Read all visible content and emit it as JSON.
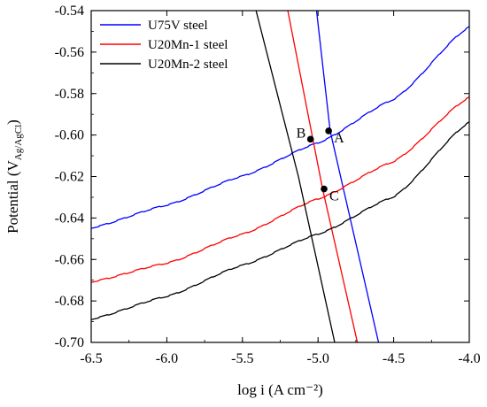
{
  "chart_data": {
    "type": "line",
    "xlabel": "log i (A cm⁻²)",
    "ylabel": "Potential (V",
    "ylabel_sub": "Ag/AgCl",
    "ylabel_close": ")",
    "xlim": [
      -6.5,
      -4.0
    ],
    "ylim": [
      -0.7,
      -0.54
    ],
    "xticks": [
      -6.5,
      -6.0,
      -5.5,
      -5.0,
      -4.5,
      -4.0
    ],
    "xtick_labels": [
      "-6.5",
      "-6.0",
      "-5.5",
      "-5.0",
      "-4.5",
      "-4.0"
    ],
    "yticks": [
      -0.7,
      -0.68,
      -0.66,
      -0.64,
      -0.62,
      -0.6,
      -0.58,
      -0.56,
      -0.54
    ],
    "ytick_labels": [
      "-0.70",
      "-0.68",
      "-0.66",
      "-0.64",
      "-0.62",
      "-0.60",
      "-0.58",
      "-0.56",
      "-0.54"
    ],
    "legend_position": "top-left",
    "series": [
      {
        "name": "U75V steel",
        "color": "#0000ff",
        "anodic": [
          [
            -6.5,
            -0.645
          ],
          [
            -6.0,
            -0.634
          ],
          [
            -5.5,
            -0.62
          ],
          [
            -5.0,
            -0.604
          ],
          [
            -4.5,
            -0.583
          ],
          [
            -4.0,
            -0.548
          ]
        ],
        "cathodic": [
          [
            -5.01,
            -0.54
          ],
          [
            -4.92,
            -0.598
          ],
          [
            -4.6,
            -0.7
          ]
        ]
      },
      {
        "name": "U20Mn-1 steel",
        "color": "#ff0000",
        "anodic": [
          [
            -6.5,
            -0.671
          ],
          [
            -6.0,
            -0.662
          ],
          [
            -5.5,
            -0.648
          ],
          [
            -5.0,
            -0.631
          ],
          [
            -4.5,
            -0.613
          ],
          [
            -4.0,
            -0.582
          ]
        ],
        "cathodic": [
          [
            -5.2,
            -0.54
          ],
          [
            -4.97,
            -0.626
          ],
          [
            -4.74,
            -0.7
          ]
        ]
      },
      {
        "name": "U20Mn-2 steel",
        "color": "#000000",
        "anodic": [
          [
            -6.5,
            -0.689
          ],
          [
            -6.0,
            -0.678
          ],
          [
            -5.5,
            -0.663
          ],
          [
            -5.0,
            -0.648
          ],
          [
            -4.5,
            -0.63
          ],
          [
            -4.0,
            -0.594
          ]
        ],
        "cathodic": [
          [
            -5.41,
            -0.54
          ],
          [
            -5.13,
            -0.62
          ],
          [
            -4.89,
            -0.7
          ]
        ]
      }
    ],
    "points": [
      {
        "label": "A",
        "x": -4.93,
        "y": -0.598
      },
      {
        "label": "B",
        "x": -5.05,
        "y": -0.602
      },
      {
        "label": "C",
        "x": -4.96,
        "y": -0.626
      }
    ]
  }
}
